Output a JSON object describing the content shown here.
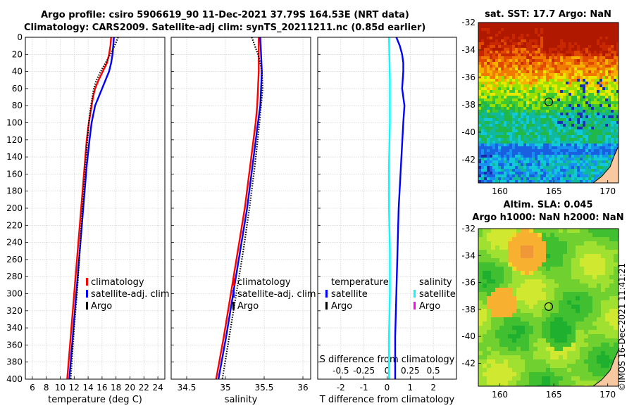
{
  "header": {
    "title_line1": "Argo profile: csiro 5906619_90 11-Dec-2021 37.79S 164.53E (NRT data)",
    "title_line2": "Climatology: CARS2009. Satellite-adj clim: synTS_20211211.nc (0.85d earlier)"
  },
  "footer": {
    "copyright": "©IMOS 16-Dec-2021 11:41:21"
  },
  "colors": {
    "climatology": "#ff0000",
    "satellite": "#0000ff",
    "argo": "#000000",
    "sal_satellite": "#00ffff",
    "sal_argo": "#ff00ff"
  },
  "chart_data": [
    {
      "type": "line",
      "title": "",
      "xlabel": "temperature (deg C)",
      "ylabel": "",
      "xlim": [
        5,
        25
      ],
      "ylim": [
        400,
        0
      ],
      "xticks": [
        6,
        8,
        10,
        12,
        14,
        16,
        18,
        20,
        22,
        24
      ],
      "yticks": [
        0,
        20,
        40,
        60,
        80,
        100,
        120,
        140,
        160,
        180,
        200,
        220,
        240,
        260,
        280,
        300,
        320,
        340,
        360,
        380,
        400
      ],
      "grid": true,
      "legend": {
        "position": "lower-middle",
        "entries": [
          "climatology",
          "satellite-adj. clim",
          "Argo"
        ]
      },
      "series": [
        {
          "name": "climatology",
          "color": "#ff0000",
          "style": "solid",
          "depth": [
            0,
            10,
            20,
            30,
            40,
            50,
            60,
            70,
            80,
            100,
            120,
            150,
            200,
            250,
            300,
            350,
            400
          ],
          "values": [
            17.3,
            17.2,
            17.0,
            16.7,
            16.1,
            15.5,
            15.0,
            14.7,
            14.5,
            14.1,
            13.8,
            13.5,
            13.0,
            12.5,
            12.0,
            11.5,
            11.0
          ]
        },
        {
          "name": "satellite-adj. clim",
          "color": "#0000ff",
          "style": "solid",
          "depth": [
            0,
            10,
            20,
            30,
            40,
            50,
            60,
            70,
            80,
            100,
            120,
            150,
            200,
            250,
            300,
            350,
            400
          ],
          "values": [
            17.7,
            17.6,
            17.5,
            17.3,
            17.0,
            16.5,
            16.0,
            15.5,
            15.0,
            14.5,
            14.2,
            13.8,
            13.3,
            12.8,
            12.3,
            11.8,
            11.3
          ]
        },
        {
          "name": "Argo",
          "color": "#000000",
          "style": "dotted",
          "depth": [
            0,
            10,
            20,
            30,
            40,
            50,
            60,
            70,
            80,
            100,
            120,
            150,
            200,
            250,
            300,
            350,
            400
          ],
          "values": [
            18.3,
            17.8,
            17.2,
            16.5,
            15.8,
            15.2,
            14.8,
            14.6,
            14.4,
            14.1,
            13.9,
            13.6,
            13.2,
            12.8,
            12.4,
            11.9,
            11.5
          ]
        }
      ]
    },
    {
      "type": "line",
      "title": "",
      "xlabel": "salinity",
      "ylabel": "",
      "xlim": [
        34.3,
        36.1
      ],
      "ylim": [
        400,
        0
      ],
      "xticks": [
        34.5,
        35,
        35.5,
        36
      ],
      "yticks": [
        0,
        20,
        40,
        60,
        80,
        100,
        120,
        140,
        160,
        180,
        200,
        220,
        240,
        260,
        280,
        300,
        320,
        340,
        360,
        380,
        400
      ],
      "grid": true,
      "legend": {
        "position": "lower-middle",
        "entries": [
          "climatology",
          "satellite-adj. clim",
          "Argo"
        ]
      },
      "series": [
        {
          "name": "climatology",
          "color": "#ff0000",
          "style": "solid",
          "depth": [
            0,
            20,
            40,
            60,
            80,
            100,
            150,
            200,
            250,
            300,
            350,
            400
          ],
          "values": [
            35.43,
            35.43,
            35.43,
            35.42,
            35.41,
            35.39,
            35.32,
            35.25,
            35.16,
            35.07,
            34.98,
            34.88
          ]
        },
        {
          "name": "satellite-adj. clim",
          "color": "#0000ff",
          "style": "solid",
          "depth": [
            0,
            20,
            40,
            60,
            80,
            100,
            150,
            200,
            250,
            300,
            350,
            400
          ],
          "values": [
            35.45,
            35.46,
            35.47,
            35.46,
            35.45,
            35.42,
            35.35,
            35.28,
            35.19,
            35.1,
            35.01,
            34.91
          ]
        },
        {
          "name": "Argo",
          "color": "#000000",
          "style": "dotted",
          "depth": [
            0,
            10,
            20,
            30,
            40,
            60,
            80,
            100,
            150,
            200,
            250,
            300,
            350,
            400
          ],
          "values": [
            35.34,
            35.38,
            35.42,
            35.45,
            35.47,
            35.48,
            35.46,
            35.44,
            35.38,
            35.31,
            35.23,
            35.14,
            35.05,
            34.96
          ]
        }
      ]
    },
    {
      "type": "line",
      "title": "",
      "xlabel": "T difference from climatology",
      "xlabel_top": "S difference from climatology",
      "ylabel": "",
      "xlim": [
        -3,
        3
      ],
      "xlim_s": [
        -0.75,
        0.75
      ],
      "ylim": [
        400,
        0
      ],
      "xticks": [
        -2,
        -1,
        0,
        1,
        2
      ],
      "xticks_s": [
        "-0.5",
        "-0.25",
        "0",
        "0.25",
        "0.5"
      ],
      "grid": true,
      "legend_temperature": {
        "heading": "temperature",
        "entries": [
          "satellite",
          "Argo"
        ]
      },
      "legend_salinity": {
        "heading": "salinity",
        "entries": [
          "satellite",
          "Argo"
        ]
      },
      "series": [
        {
          "name": "T satellite",
          "color": "#0000ff",
          "style": "solid",
          "depth": [
            0,
            10,
            20,
            30,
            40,
            60,
            80,
            100,
            150,
            200,
            250,
            300,
            350,
            400
          ],
          "values": [
            0.4,
            0.55,
            0.65,
            0.7,
            0.7,
            0.65,
            0.75,
            0.7,
            0.6,
            0.5,
            0.45,
            0.4,
            0.35,
            0.35
          ]
        },
        {
          "name": "S satellite",
          "color": "#00ffff",
          "style": "solid",
          "depth": [
            0,
            50,
            100,
            150,
            200,
            250,
            300,
            350,
            400
          ],
          "values": [
            0.02,
            0.03,
            0.03,
            0.02,
            0.02,
            0.03,
            0.03,
            0.02,
            0.02
          ]
        }
      ]
    },
    {
      "type": "heatmap",
      "title": "sat. SST: 17.7 Argo: NaN",
      "xlabel": "",
      "ylabel": "",
      "xlim": [
        158,
        171
      ],
      "ylim": [
        -43.7,
        -32
      ],
      "xticks": [
        160,
        165,
        170
      ],
      "yticks": [
        -32,
        -34,
        -36,
        -38,
        -40,
        -42
      ],
      "marker": {
        "lon": 164.53,
        "lat": -37.79
      }
    },
    {
      "type": "heatmap",
      "title": "Altim. SLA: 0.045",
      "subtitle": "Argo h1000: NaN h2000: NaN",
      "xlabel": "",
      "ylabel": "",
      "xlim": [
        158,
        171
      ],
      "ylim": [
        -43.7,
        -32
      ],
      "xticks": [
        160,
        165,
        170
      ],
      "yticks": [
        -32,
        -34,
        -36,
        -38,
        -40,
        -42
      ],
      "marker": {
        "lon": 164.53,
        "lat": -37.79
      }
    }
  ]
}
